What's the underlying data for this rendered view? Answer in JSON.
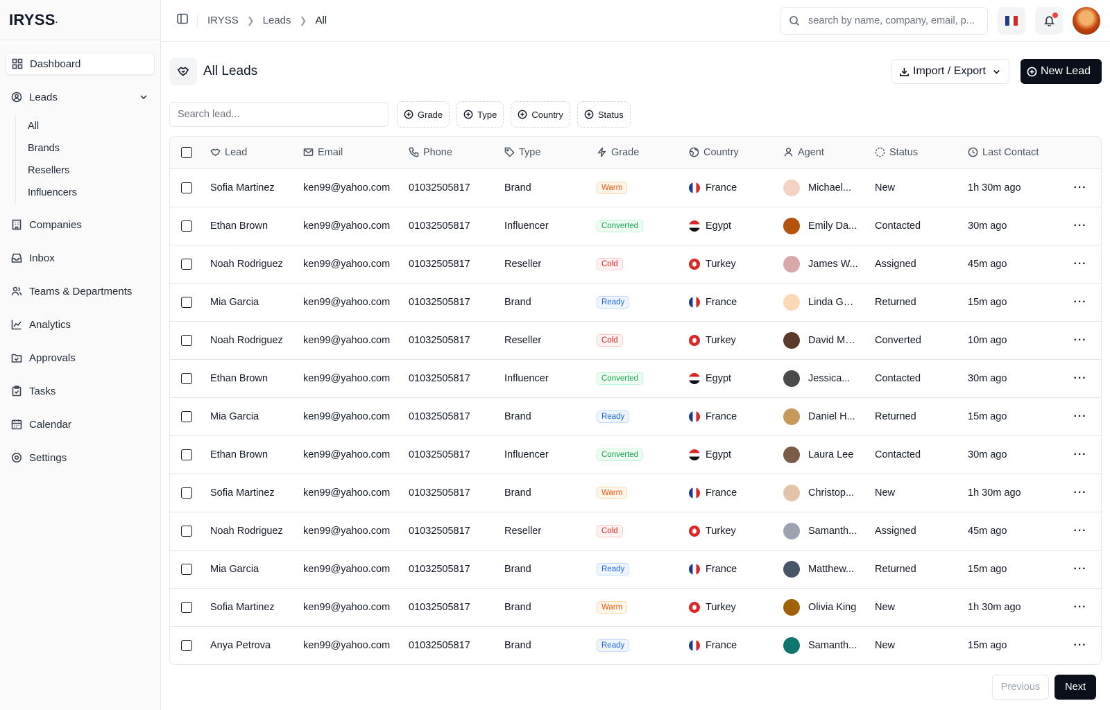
{
  "brand": {
    "name": "IRYSS",
    "dot": "."
  },
  "sidebar": {
    "items": [
      {
        "label": "Dashboard",
        "icon": "dashboard-icon"
      },
      {
        "label": "Leads",
        "icon": "leads-icon"
      },
      {
        "label": "Companies",
        "icon": "building-icon"
      },
      {
        "label": "Inbox",
        "icon": "inbox-icon"
      },
      {
        "label": "Teams & Departments",
        "icon": "users-icon"
      },
      {
        "label": "Analytics",
        "icon": "chart-line-icon"
      },
      {
        "label": "Approvals",
        "icon": "folder-check-icon"
      },
      {
        "label": "Tasks",
        "icon": "clipboard-icon"
      },
      {
        "label": "Calendar",
        "icon": "calendar-icon"
      },
      {
        "label": "Settings",
        "icon": "gear-icon"
      }
    ],
    "leads_sub": [
      "All",
      "Brands",
      "Resellers",
      "Influencers"
    ]
  },
  "topbar": {
    "breadcrumb": [
      "IRYSS",
      "Leads",
      "All"
    ],
    "search_placeholder": "search by name, company, email, p...",
    "language": "fr"
  },
  "page": {
    "title": "All Leads",
    "import_export_label": "Import / Export",
    "new_lead_label": "New Lead",
    "search_placeholder": "Search lead...",
    "filters": [
      "Grade",
      "Type",
      "Country",
      "Status"
    ]
  },
  "table": {
    "columns": [
      "Lead",
      "Email",
      "Phone",
      "Type",
      "Grade",
      "Country",
      "Agent",
      "Status",
      "Last Contact"
    ],
    "rows": [
      {
        "lead": "Sofia Martinez",
        "email": "ken99@yahoo.com",
        "phone": "01032505817",
        "type": "Brand",
        "grade": "Warm",
        "country": "France",
        "agent": "Michael...",
        "status": "New",
        "last_contact": "1h 30m ago",
        "avatar_color": "#f3d2c1"
      },
      {
        "lead": "Ethan Brown",
        "email": "ken99@yahoo.com",
        "phone": "01032505817",
        "type": "Influencer",
        "grade": "Converted",
        "country": "Egypt",
        "agent": "Emily Da...",
        "status": "Contacted",
        "last_contact": "30m ago",
        "avatar_color": "#b45309"
      },
      {
        "lead": "Noah Rodriguez",
        "email": "ken99@yahoo.com",
        "phone": "01032505817",
        "type": "Reseller",
        "grade": "Cold",
        "country": "Turkey",
        "agent": "James W...",
        "status": "Assigned",
        "last_contact": "45m ago",
        "avatar_color": "#d8a7a7"
      },
      {
        "lead": "Mia Garcia",
        "email": "ken99@yahoo.com",
        "phone": "01032505817",
        "type": "Brand",
        "grade": "Ready",
        "country": "France",
        "agent": "Linda Gar...",
        "status": "Returned",
        "last_contact": "15m ago",
        "avatar_color": "#fcd9b6"
      },
      {
        "lead": "Noah Rodriguez",
        "email": "ken99@yahoo.com",
        "phone": "01032505817",
        "type": "Reseller",
        "grade": "Cold",
        "country": "Turkey",
        "agent": "David Ma...",
        "status": "Converted",
        "last_contact": "10m ago",
        "avatar_color": "#5b3a29"
      },
      {
        "lead": "Ethan Brown",
        "email": "ken99@yahoo.com",
        "phone": "01032505817",
        "type": "Influencer",
        "grade": "Converted",
        "country": "Egypt",
        "agent": "Jessica...",
        "status": "Contacted",
        "last_contact": "30m ago",
        "avatar_color": "#4b4b4b"
      },
      {
        "lead": "Mia Garcia",
        "email": "ken99@yahoo.com",
        "phone": "01032505817",
        "type": "Brand",
        "grade": "Ready",
        "country": "France",
        "agent": "Daniel H...",
        "status": "Returned",
        "last_contact": "15m ago",
        "avatar_color": "#c59a5a"
      },
      {
        "lead": "Ethan Brown",
        "email": "ken99@yahoo.com",
        "phone": "01032505817",
        "type": "Influencer",
        "grade": "Converted",
        "country": "Egypt",
        "agent": "Laura Lee",
        "status": "Contacted",
        "last_contact": "30m ago",
        "avatar_color": "#7a5c48"
      },
      {
        "lead": "Sofia Martinez",
        "email": "ken99@yahoo.com",
        "phone": "01032505817",
        "type": "Brand",
        "grade": "Warm",
        "country": "France",
        "agent": "Christop...",
        "status": "New",
        "last_contact": "1h 30m ago",
        "avatar_color": "#e3c4a8"
      },
      {
        "lead": "Noah Rodriguez",
        "email": "ken99@yahoo.com",
        "phone": "01032505817",
        "type": "Reseller",
        "grade": "Cold",
        "country": "Turkey",
        "agent": "Samanth...",
        "status": "Assigned",
        "last_contact": "45m ago",
        "avatar_color": "#9ca3af"
      },
      {
        "lead": "Mia Garcia",
        "email": "ken99@yahoo.com",
        "phone": "01032505817",
        "type": "Brand",
        "grade": "Ready",
        "country": "France",
        "agent": "Matthew...",
        "status": "Returned",
        "last_contact": "15m ago",
        "avatar_color": "#475569"
      },
      {
        "lead": "Sofia Martinez",
        "email": "ken99@yahoo.com",
        "phone": "01032505817",
        "type": "Brand",
        "grade": "Warm",
        "country": "Turkey",
        "agent": "Olivia King",
        "status": "New",
        "last_contact": "1h 30m ago",
        "avatar_color": "#a16207"
      },
      {
        "lead": "Anya Petrova",
        "email": "ken99@yahoo.com",
        "phone": "01032505817",
        "type": "Brand",
        "grade": "Ready",
        "country": "France",
        "agent": "Samanth...",
        "status": "New",
        "last_contact": "15m ago",
        "avatar_color": "#0f766e"
      }
    ]
  },
  "pagination": {
    "prev_label": "Previous",
    "next_label": "Next"
  },
  "colors": {
    "accent": "#0b0f19",
    "notification": "#ef4444",
    "warm": "#ea580c",
    "converted": "#16a34a",
    "cold": "#dc2626",
    "ready": "#2563eb"
  }
}
